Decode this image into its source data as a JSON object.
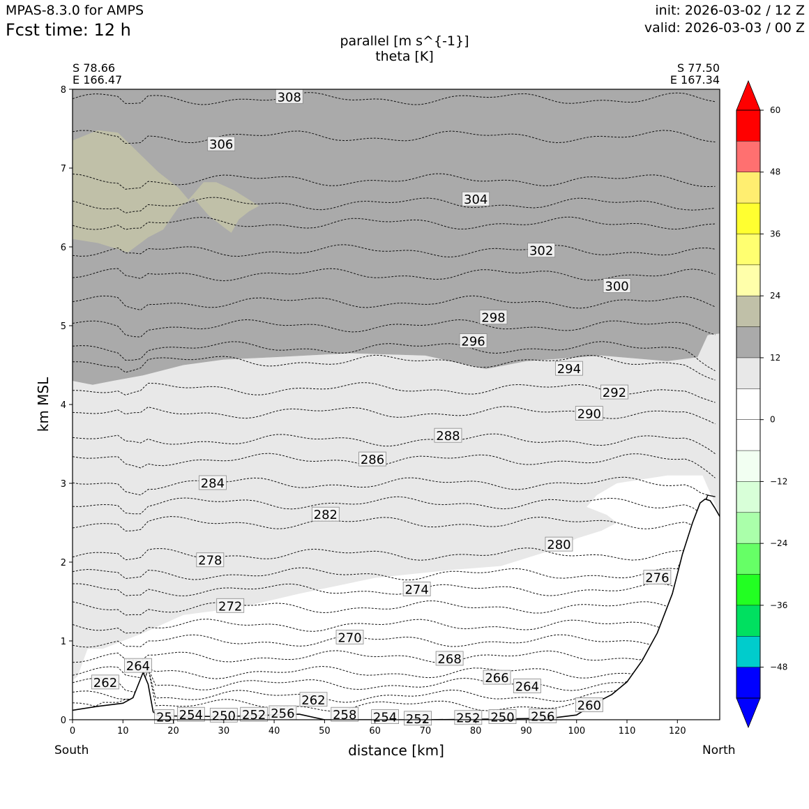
{
  "header": {
    "model": "MPAS-8.3.0 for AMPS",
    "fcst": "Fcst time:   12 h",
    "init": "init: 2026-03-02 / 12 Z",
    "valid": "valid: 2026-03-03 / 00 Z"
  },
  "chart_data": {
    "type": "contour",
    "title_line1": "parallel [m s^{-1}]",
    "title_line2": "theta [K]",
    "xlabel": "distance [km]",
    "ylabel": "km MSL",
    "xlim": [
      0,
      128.4
    ],
    "ylim": [
      0,
      8
    ],
    "x_ticks": [
      0,
      10,
      20,
      30,
      40,
      50,
      60,
      70,
      80,
      90,
      100,
      110,
      120
    ],
    "y_ticks": [
      0,
      1,
      2,
      3,
      4,
      5,
      6,
      7,
      8
    ],
    "endpoints": {
      "left": {
        "lat": "S 78.66",
        "lon": "E 166.47",
        "side": "South"
      },
      "right": {
        "lat": "S 77.50",
        "lon": "E 167.34",
        "side": "North"
      }
    },
    "theta_labels": [
      {
        "value": "308",
        "x": 43,
        "z": 7.9
      },
      {
        "value": "306",
        "x": 29.5,
        "z": 7.3
      },
      {
        "value": "304",
        "x": 80,
        "z": 6.6
      },
      {
        "value": "302",
        "x": 93,
        "z": 5.95
      },
      {
        "value": "300",
        "x": 108,
        "z": 5.5
      },
      {
        "value": "298",
        "x": 83.5,
        "z": 5.1
      },
      {
        "value": "296",
        "x": 79.5,
        "z": 4.8
      },
      {
        "value": "294",
        "x": 98.5,
        "z": 4.45
      },
      {
        "value": "292",
        "x": 107.5,
        "z": 4.15
      },
      {
        "value": "290",
        "x": 102.5,
        "z": 3.88
      },
      {
        "value": "288",
        "x": 74.5,
        "z": 3.6
      },
      {
        "value": "286",
        "x": 59.5,
        "z": 3.3
      },
      {
        "value": "284",
        "x": 27.8,
        "z": 3.0
      },
      {
        "value": "282",
        "x": 50.2,
        "z": 2.6
      },
      {
        "value": "280",
        "x": 96.5,
        "z": 2.22
      },
      {
        "value": "278",
        "x": 27.3,
        "z": 2.02
      },
      {
        "value": "276",
        "x": 116,
        "z": 1.8
      },
      {
        "value": "274",
        "x": 68.3,
        "z": 1.65
      },
      {
        "value": "272",
        "x": 31.3,
        "z": 1.44
      },
      {
        "value": "270",
        "x": 55,
        "z": 1.04
      },
      {
        "value": "268",
        "x": 74.8,
        "z": 0.77
      },
      {
        "value": "266",
        "x": 84.2,
        "z": 0.53
      },
      {
        "value": "264",
        "x": 90.2,
        "z": 0.42
      },
      {
        "value": "264",
        "x": 13,
        "z": 0.68
      },
      {
        "value": "262",
        "x": 6.5,
        "z": 0.47
      },
      {
        "value": "262",
        "x": 47.8,
        "z": 0.25
      },
      {
        "value": "260",
        "x": 102.5,
        "z": 0.18
      },
      {
        "value": "258",
        "x": 54,
        "z": 0.06
      },
      {
        "value": "256",
        "x": 41.7,
        "z": 0.08
      },
      {
        "value": "256",
        "x": 93.3,
        "z": 0.04
      },
      {
        "value": "254",
        "x": 23.5,
        "z": 0.06
      },
      {
        "value": "254",
        "x": 62,
        "z": 0.03
      },
      {
        "value": "252",
        "x": 36,
        "z": 0.06
      },
      {
        "value": "252",
        "x": 68.5,
        "z": 0.01
      },
      {
        "value": "252",
        "x": 78.5,
        "z": 0.02
      },
      {
        "value": "250",
        "x": 30,
        "z": 0.05
      },
      {
        "value": "250",
        "x": 85.3,
        "z": 0.03
      },
      {
        "value": "25",
        "x": 18.2,
        "z": 0.03
      }
    ],
    "colorbar": {
      "ticks": [
        "60",
        "48",
        "36",
        "24",
        "12",
        "0",
        "−12",
        "−24",
        "−36",
        "−48"
      ],
      "colors_top_to_bottom": [
        "#ff0000",
        "#ff7070",
        "#ffee70",
        "#ffff30",
        "#ffff70",
        "#ffffaa",
        "#c0c0a8",
        "#aaaaaa",
        "#e8e8e8",
        "#ffffff",
        "#ffffff",
        "#f2fff2",
        "#d8ffd8",
        "#aaffaa",
        "#66ff66",
        "#22ff22",
        "#00e060",
        "#00cccc",
        "#0000ff"
      ]
    },
    "wind_regions": [
      {
        "band": "12 to 18",
        "color": "#aaaaaa",
        "location": "above about 4.3-4.6 km"
      },
      {
        "band": "18 to 24",
        "color": "#c0c0a8",
        "location": "patch near x 0-37 km, z 6-7.5 km"
      },
      {
        "band": "6 to 12",
        "color": "#e8e8e8",
        "location": "mid levels"
      },
      {
        "band": "0 to 6",
        "color": "#ffffff",
        "location": "lower levels"
      }
    ]
  }
}
